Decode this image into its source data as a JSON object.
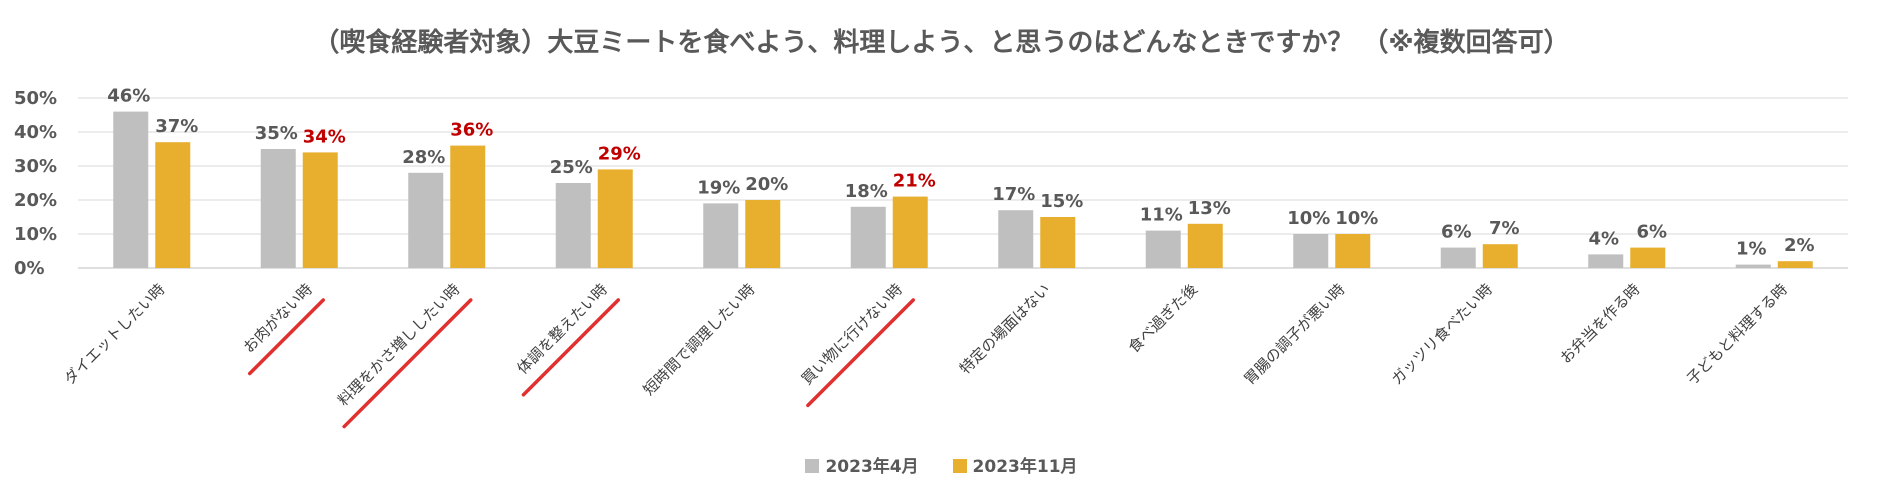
{
  "chart_data": {
    "type": "bar",
    "title": "（喫食経験者対象）大豆ミートを食べよう、料理しよう、と思うのはどんなときですか？ （※複数回答可）",
    "ylim": [
      0,
      50
    ],
    "yticks": [
      "0%",
      "10%",
      "20%",
      "30%",
      "40%",
      "50%"
    ],
    "grid": true,
    "legend_position": "bottom",
    "categories": [
      "ダイエットしたい時",
      "お肉がない時",
      "料理をかさ増ししたい時",
      "体調を整えたい時",
      "短時間で調理したい時",
      "買い物に行けない時",
      "特定の場面はない",
      "食べ過ぎた後",
      "胃腸の調子が悪い時",
      "ガッツリ食べたい時",
      "お弁当を作る時",
      "子どもと料理する時"
    ],
    "underlined_categories": [
      "お肉がない時",
      "料理をかさ増ししたい時",
      "体調を整えたい時",
      "買い物に行けない時"
    ],
    "series": [
      {
        "name": "2023年4月",
        "color": "#BFBFBF",
        "values": [
          46,
          35,
          28,
          25,
          19,
          18,
          17,
          11,
          10,
          6,
          4,
          1
        ],
        "labels": [
          "46%",
          "35%",
          "28%",
          "25%",
          "19%",
          "18%",
          "17%",
          "11%",
          "10%",
          "6%",
          "4%",
          "1%"
        ]
      },
      {
        "name": "2023年11月",
        "color": "#E8AF2E",
        "values": [
          37,
          34,
          36,
          29,
          20,
          21,
          15,
          13,
          10,
          7,
          6,
          2
        ],
        "labels": [
          "37%",
          "34%",
          "36%",
          "29%",
          "20%",
          "21%",
          "15%",
          "13%",
          "10%",
          "7%",
          "6%",
          "2%"
        ],
        "highlight_indices": [
          1,
          2,
          3,
          5
        ]
      }
    ],
    "colors": {
      "axis_text": "#595959",
      "grid": "#D9D9D9",
      "highlight_label": "#C00000",
      "underline": "#E03030"
    }
  }
}
